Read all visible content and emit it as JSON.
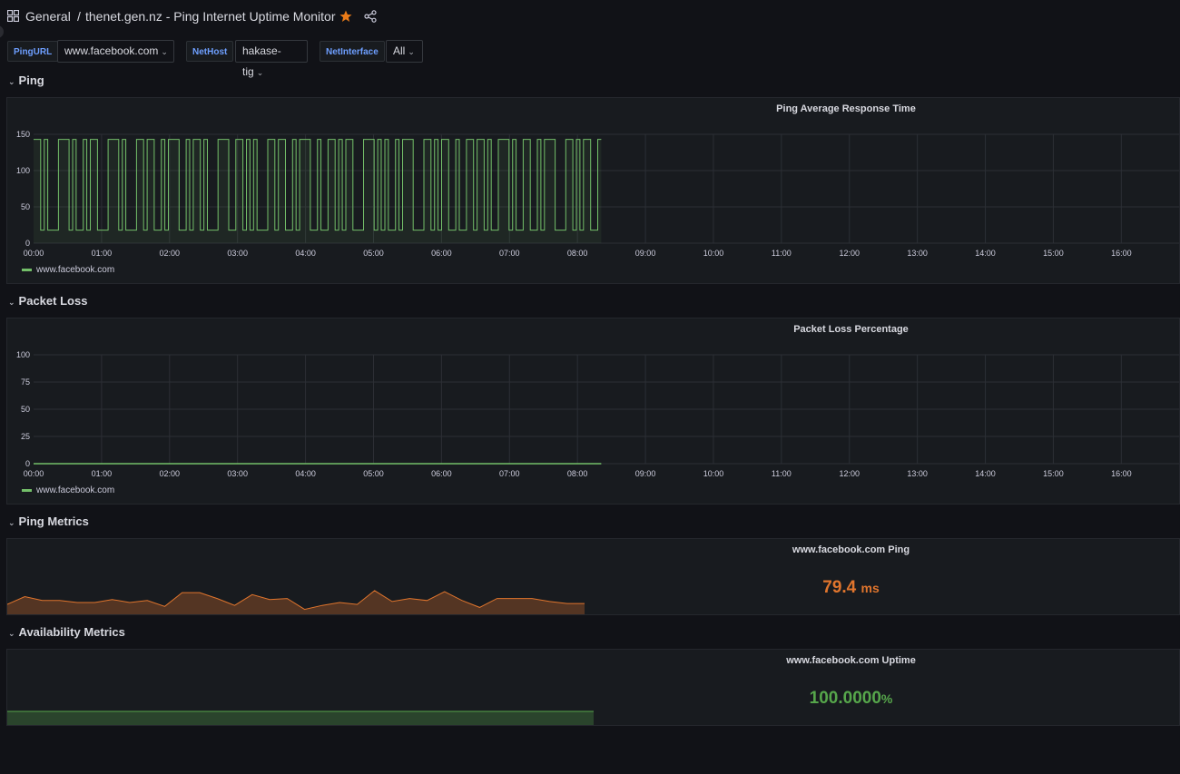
{
  "header": {
    "folder": "General",
    "separator": "/",
    "title": "thenet.gen.nz - Ping Internet Uptime Monitor",
    "star_color": "#eb7b18"
  },
  "variables": [
    {
      "label": "PingURL",
      "value": "www.facebook.com"
    },
    {
      "label": "NetHost",
      "value": "hakase-tig"
    },
    {
      "label": "NetInterface",
      "value": "All"
    }
  ],
  "rows": {
    "ping": "Ping",
    "packet_loss": "Packet Loss",
    "ping_metrics": "Ping Metrics",
    "availability": "Availability Metrics"
  },
  "panels": {
    "ping_avg": {
      "title": "Ping Average Response Time",
      "legend": "www.facebook.com"
    },
    "packet_loss": {
      "title": "Packet Loss Percentage",
      "legend": "www.facebook.com"
    },
    "ping_stat": {
      "title": "www.facebook.com Ping",
      "value": "79.4",
      "unit": "ms",
      "color": "#e0752d"
    },
    "uptime_stat": {
      "title": "www.facebook.com Uptime",
      "value": "100.0000",
      "unit": "%",
      "color": "#56a64b"
    }
  },
  "chart_data": [
    {
      "type": "line",
      "title": "Ping Average Response Time",
      "x_ticks": [
        "00:00",
        "01:00",
        "02:00",
        "03:00",
        "04:00",
        "05:00",
        "06:00",
        "07:00",
        "08:00",
        "09:00",
        "10:00",
        "11:00",
        "12:00",
        "13:00",
        "14:00",
        "15:00",
        "16:00"
      ],
      "y_ticks": [
        0,
        50,
        100,
        150
      ],
      "ylim": [
        0,
        150
      ],
      "xlim_hours": [
        0,
        16.85
      ],
      "grid": true,
      "legend": "bottom-left",
      "series": [
        {
          "name": "www.facebook.com",
          "color": "#73bf69",
          "x_range_hours": [
            0,
            8.35
          ],
          "values_low_high": [
            18,
            143
          ],
          "pattern": "1101000111010010110001110100011011001011100101101000111001101010001101100101110010011010110001110101001011100011010110010011011010011101001100101110001101011001"
        }
      ]
    },
    {
      "type": "line",
      "title": "Packet Loss Percentage",
      "x_ticks": [
        "00:00",
        "01:00",
        "02:00",
        "03:00",
        "04:00",
        "05:00",
        "06:00",
        "07:00",
        "08:00",
        "09:00",
        "10:00",
        "11:00",
        "12:00",
        "13:00",
        "14:00",
        "15:00",
        "16:00"
      ],
      "y_ticks": [
        0,
        25,
        50,
        75,
        100
      ],
      "ylim": [
        0,
        100
      ],
      "xlim_hours": [
        0,
        16.85
      ],
      "grid": true,
      "legend": "bottom-left",
      "series": [
        {
          "name": "www.facebook.com",
          "color": "#73bf69",
          "x_range_hours": [
            0,
            8.35
          ],
          "constant_value": 0
        }
      ]
    },
    {
      "type": "area",
      "title": "www.facebook.com Ping",
      "color": "#e0752d",
      "values": [
        70,
        78,
        74,
        74,
        72,
        72,
        75,
        72,
        74,
        68,
        82,
        82,
        76,
        69,
        80,
        75,
        76,
        65,
        69,
        72,
        70,
        84,
        73,
        76,
        74,
        83,
        74,
        67,
        76,
        76,
        76,
        73,
        71,
        71
      ]
    },
    {
      "type": "area",
      "title": "www.facebook.com Uptime",
      "color": "#56a64b",
      "values": [
        100,
        100
      ]
    }
  ]
}
